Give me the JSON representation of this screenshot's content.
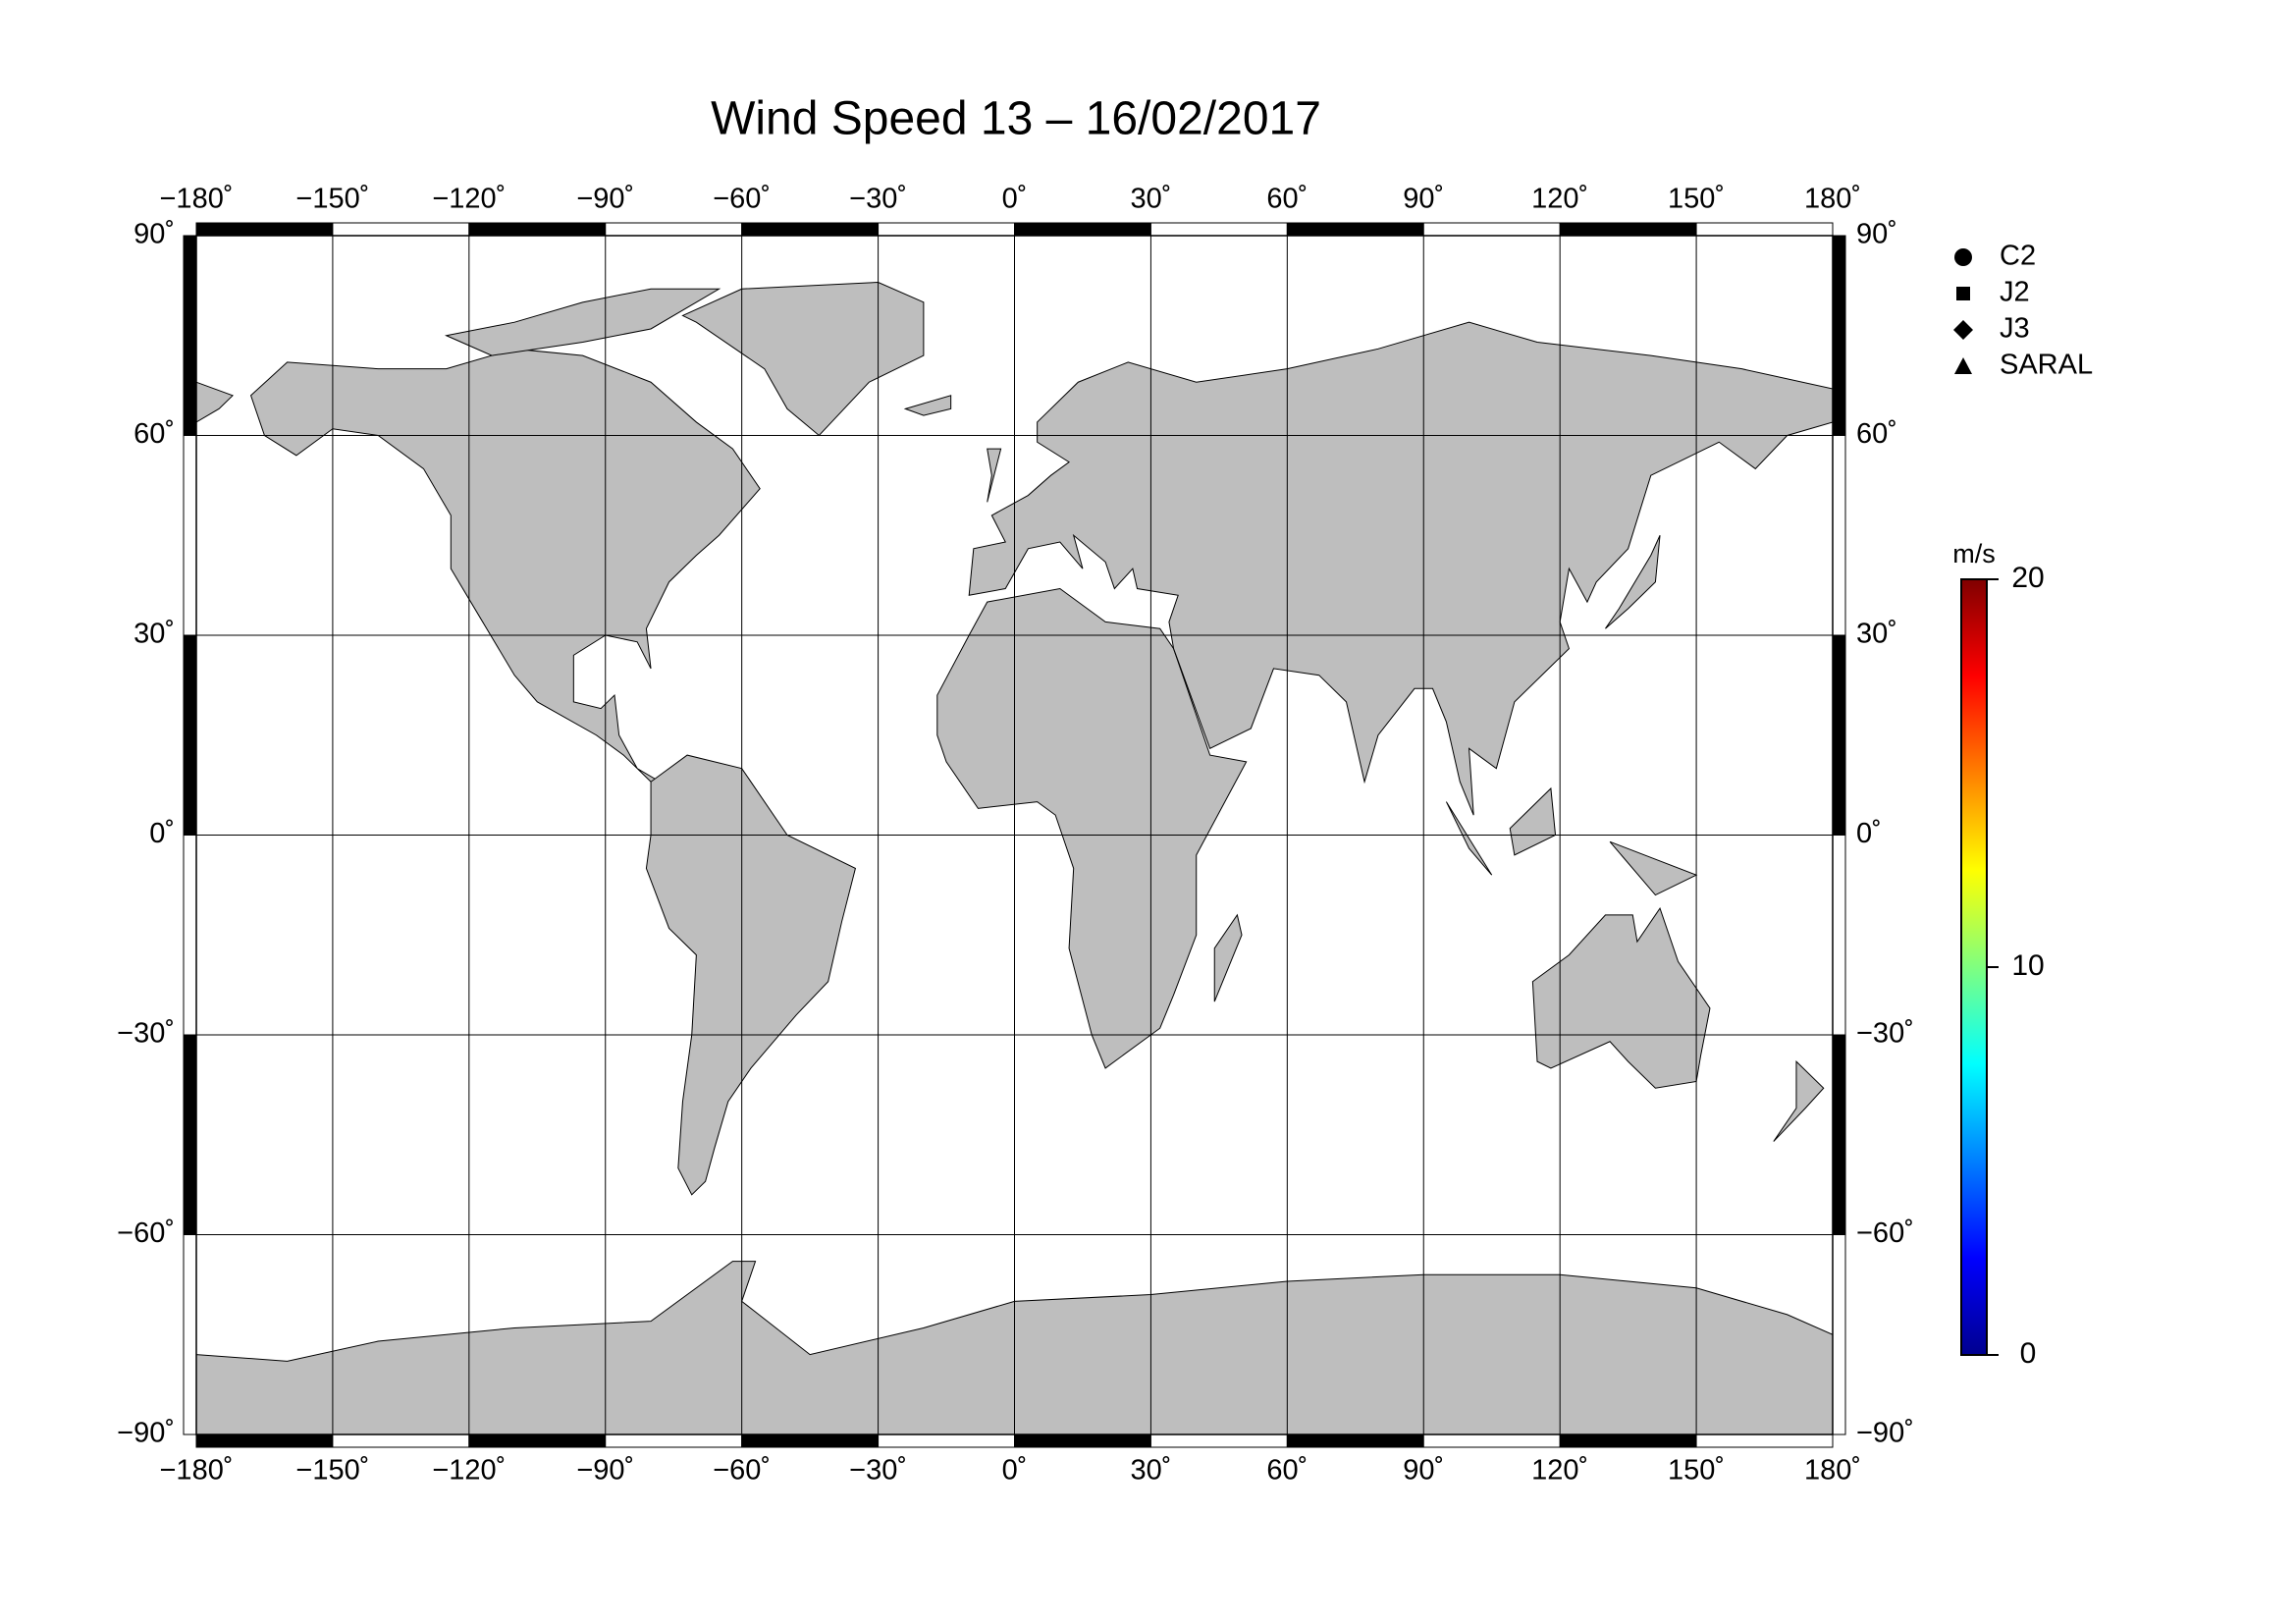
{
  "chart_data": {
    "type": "map",
    "title": "Wind Speed 13 – 16/02/2017",
    "xlim": [
      -180,
      180
    ],
    "ylim": [
      -90,
      90
    ],
    "xticks": [
      {
        "value": -180,
        "label": "−180˚"
      },
      {
        "value": -150,
        "label": "−150˚"
      },
      {
        "value": -120,
        "label": "−120˚"
      },
      {
        "value": -90,
        "label": "−90˚"
      },
      {
        "value": -60,
        "label": "−60˚"
      },
      {
        "value": -30,
        "label": "−30˚"
      },
      {
        "value": 0,
        "label": "0˚"
      },
      {
        "value": 30,
        "label": "30˚"
      },
      {
        "value": 60,
        "label": "60˚"
      },
      {
        "value": 90,
        "label": "90˚"
      },
      {
        "value": 120,
        "label": "120˚"
      },
      {
        "value": 150,
        "label": "150˚"
      },
      {
        "value": 180,
        "label": "180˚"
      }
    ],
    "yticks": [
      {
        "value": -90,
        "label": "−90˚"
      },
      {
        "value": -60,
        "label": "−60˚"
      },
      {
        "value": -30,
        "label": "−30˚"
      },
      {
        "value": 0,
        "label": "0˚"
      },
      {
        "value": 30,
        "label": "30˚"
      },
      {
        "value": 60,
        "label": "60˚"
      },
      {
        "value": 90,
        "label": "90˚"
      }
    ],
    "grid": true,
    "land_color": "#bebebe",
    "legend": "upper right",
    "series": [
      {
        "name": "C2",
        "marker": "circle"
      },
      {
        "name": "J2",
        "marker": "square"
      },
      {
        "name": "J3",
        "marker": "diamond"
      },
      {
        "name": "SARAL",
        "marker": "triangle"
      }
    ],
    "colorbar": {
      "label": "m/s",
      "lim": [
        0,
        20
      ],
      "ticks": [
        0,
        10,
        20
      ],
      "colormap": "jet"
    }
  }
}
